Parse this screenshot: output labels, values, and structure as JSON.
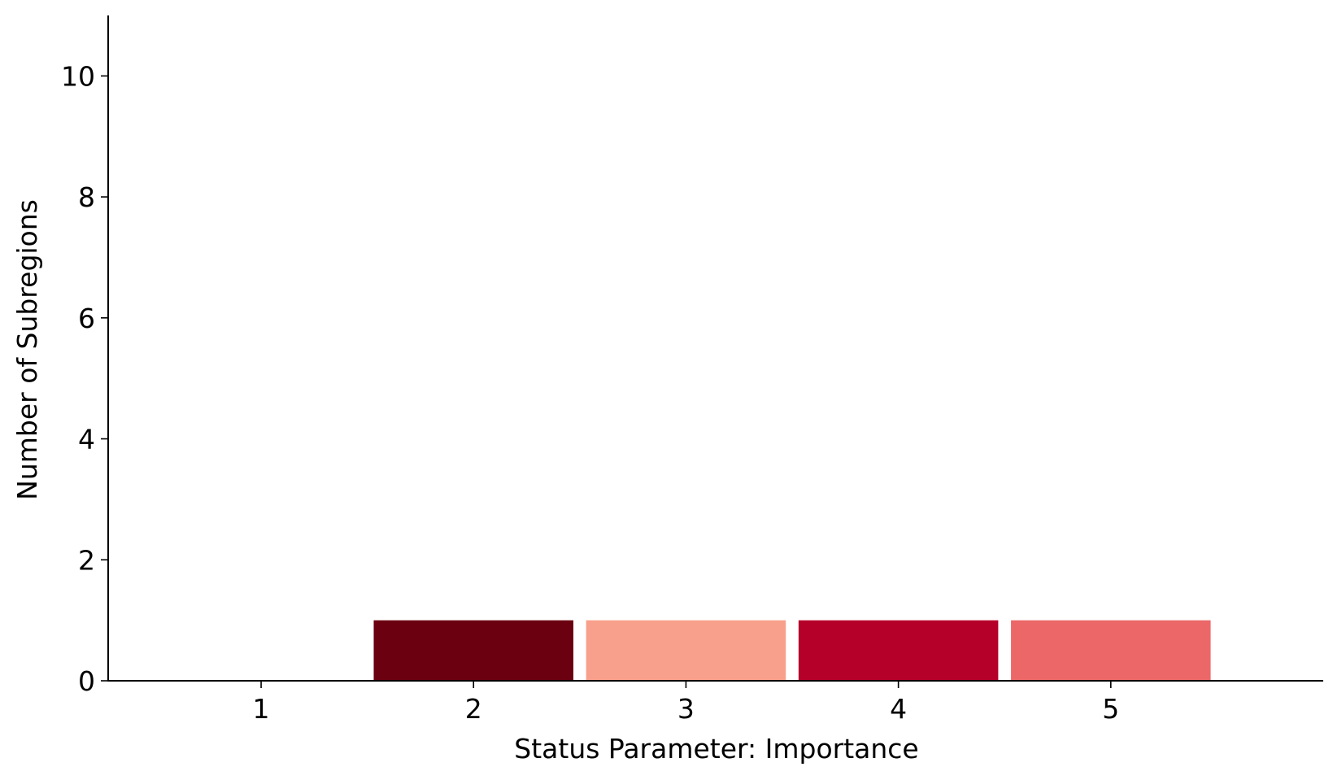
{
  "chart_data": {
    "type": "bar",
    "title": "",
    "xlabel": "Status Parameter: Importance",
    "ylabel": "Number of Subregions",
    "categories": [
      "1",
      "2",
      "3",
      "4",
      "5"
    ],
    "values": [
      0,
      1,
      1,
      1,
      1
    ],
    "bar_colors": [
      "#ffffff",
      "#6b0011",
      "#f8a08b",
      "#b5002a",
      "#ec6868"
    ],
    "x_ticks": [
      "1",
      "2",
      "3",
      "4",
      "5"
    ],
    "y_ticks": [
      "0",
      "2",
      "4",
      "6",
      "8",
      "10"
    ],
    "ylim": [
      0,
      11
    ],
    "grid": false,
    "legend": false
  }
}
